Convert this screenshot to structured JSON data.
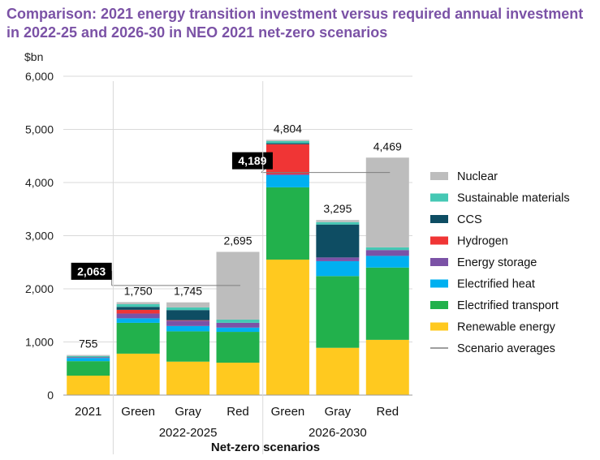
{
  "title": "Comparison: 2021 energy transition investment versus required annual investment in 2022-25 and 2026-30 in NEO 2021 net-zero scenarios",
  "chart_data": {
    "type": "bar",
    "stacked": true,
    "title": "Comparison: 2021 energy transition investment versus required annual investment in 2022-25 and 2026-30 in NEO 2021 net-zero scenarios",
    "ylabel": "$bn",
    "xlabel": "Net-zero scenarios",
    "ylim": [
      0,
      6000
    ],
    "yticks": [
      0,
      1000,
      2000,
      3000,
      4000,
      5000,
      6000
    ],
    "ytick_labels": [
      "0",
      "1,000",
      "2,000",
      "3,000",
      "4,000",
      "5,000",
      "6,000"
    ],
    "grid": true,
    "legend_position": "right",
    "categories": [
      "2021",
      "Green",
      "Gray",
      "Red",
      "Green",
      "Gray",
      "Red"
    ],
    "groups": [
      {
        "label": "2022-2025",
        "categories": [
          1,
          2,
          3
        ]
      },
      {
        "label": "2026-2030",
        "categories": [
          4,
          5,
          6
        ]
      }
    ],
    "series": [
      {
        "name": "Renewable energy",
        "color": "#ffc91f",
        "values": [
          366,
          780,
          630,
          610,
          2550,
          890,
          1040
        ]
      },
      {
        "name": "Electrified transport",
        "color": "#22b14c",
        "values": [
          273,
          580,
          570,
          580,
          1360,
          1350,
          1360
        ]
      },
      {
        "name": "Electrified heat",
        "color": "#00b0f0",
        "values": [
          60,
          85,
          100,
          80,
          230,
          280,
          220
        ]
      },
      {
        "name": "Energy storage",
        "color": "#7b52a6",
        "values": [
          10,
          90,
          100,
          90,
          20,
          70,
          110
        ]
      },
      {
        "name": "Hydrogen",
        "color": "#f03535",
        "values": [
          1,
          70,
          10,
          0,
          560,
          0,
          0
        ]
      },
      {
        "name": "CCS",
        "color": "#0e4d63",
        "values": [
          5,
          55,
          190,
          0,
          20,
          620,
          0
        ]
      },
      {
        "name": "Sustainable materials",
        "color": "#45c8b4",
        "values": [
          20,
          50,
          50,
          60,
          40,
          45,
          50
        ]
      },
      {
        "name": "Nuclear",
        "color": "#bdbdbd",
        "values": [
          20,
          40,
          95,
          1275,
          24,
          40,
          1689
        ]
      }
    ],
    "totals": [
      755,
      1750,
      1745,
      2695,
      4804,
      3295,
      4469
    ],
    "total_labels": [
      "755",
      "1,750",
      "1,745",
      "2,695",
      "4,804",
      "3,295",
      "4,469"
    ],
    "scenario_averages": [
      {
        "label": "2,063",
        "value": 2063,
        "from_category": 1,
        "to_category": 3
      },
      {
        "label": "4,189",
        "value": 4189,
        "from_category": 4,
        "to_category": 6
      }
    ],
    "legend": [
      "Nuclear",
      "Sustainable materials",
      "CCS",
      "Hydrogen",
      "Energy storage",
      "Electrified heat",
      "Electrified transport",
      "Renewable energy",
      "Scenario averages"
    ],
    "average_line_color": "#7f7f7f"
  }
}
